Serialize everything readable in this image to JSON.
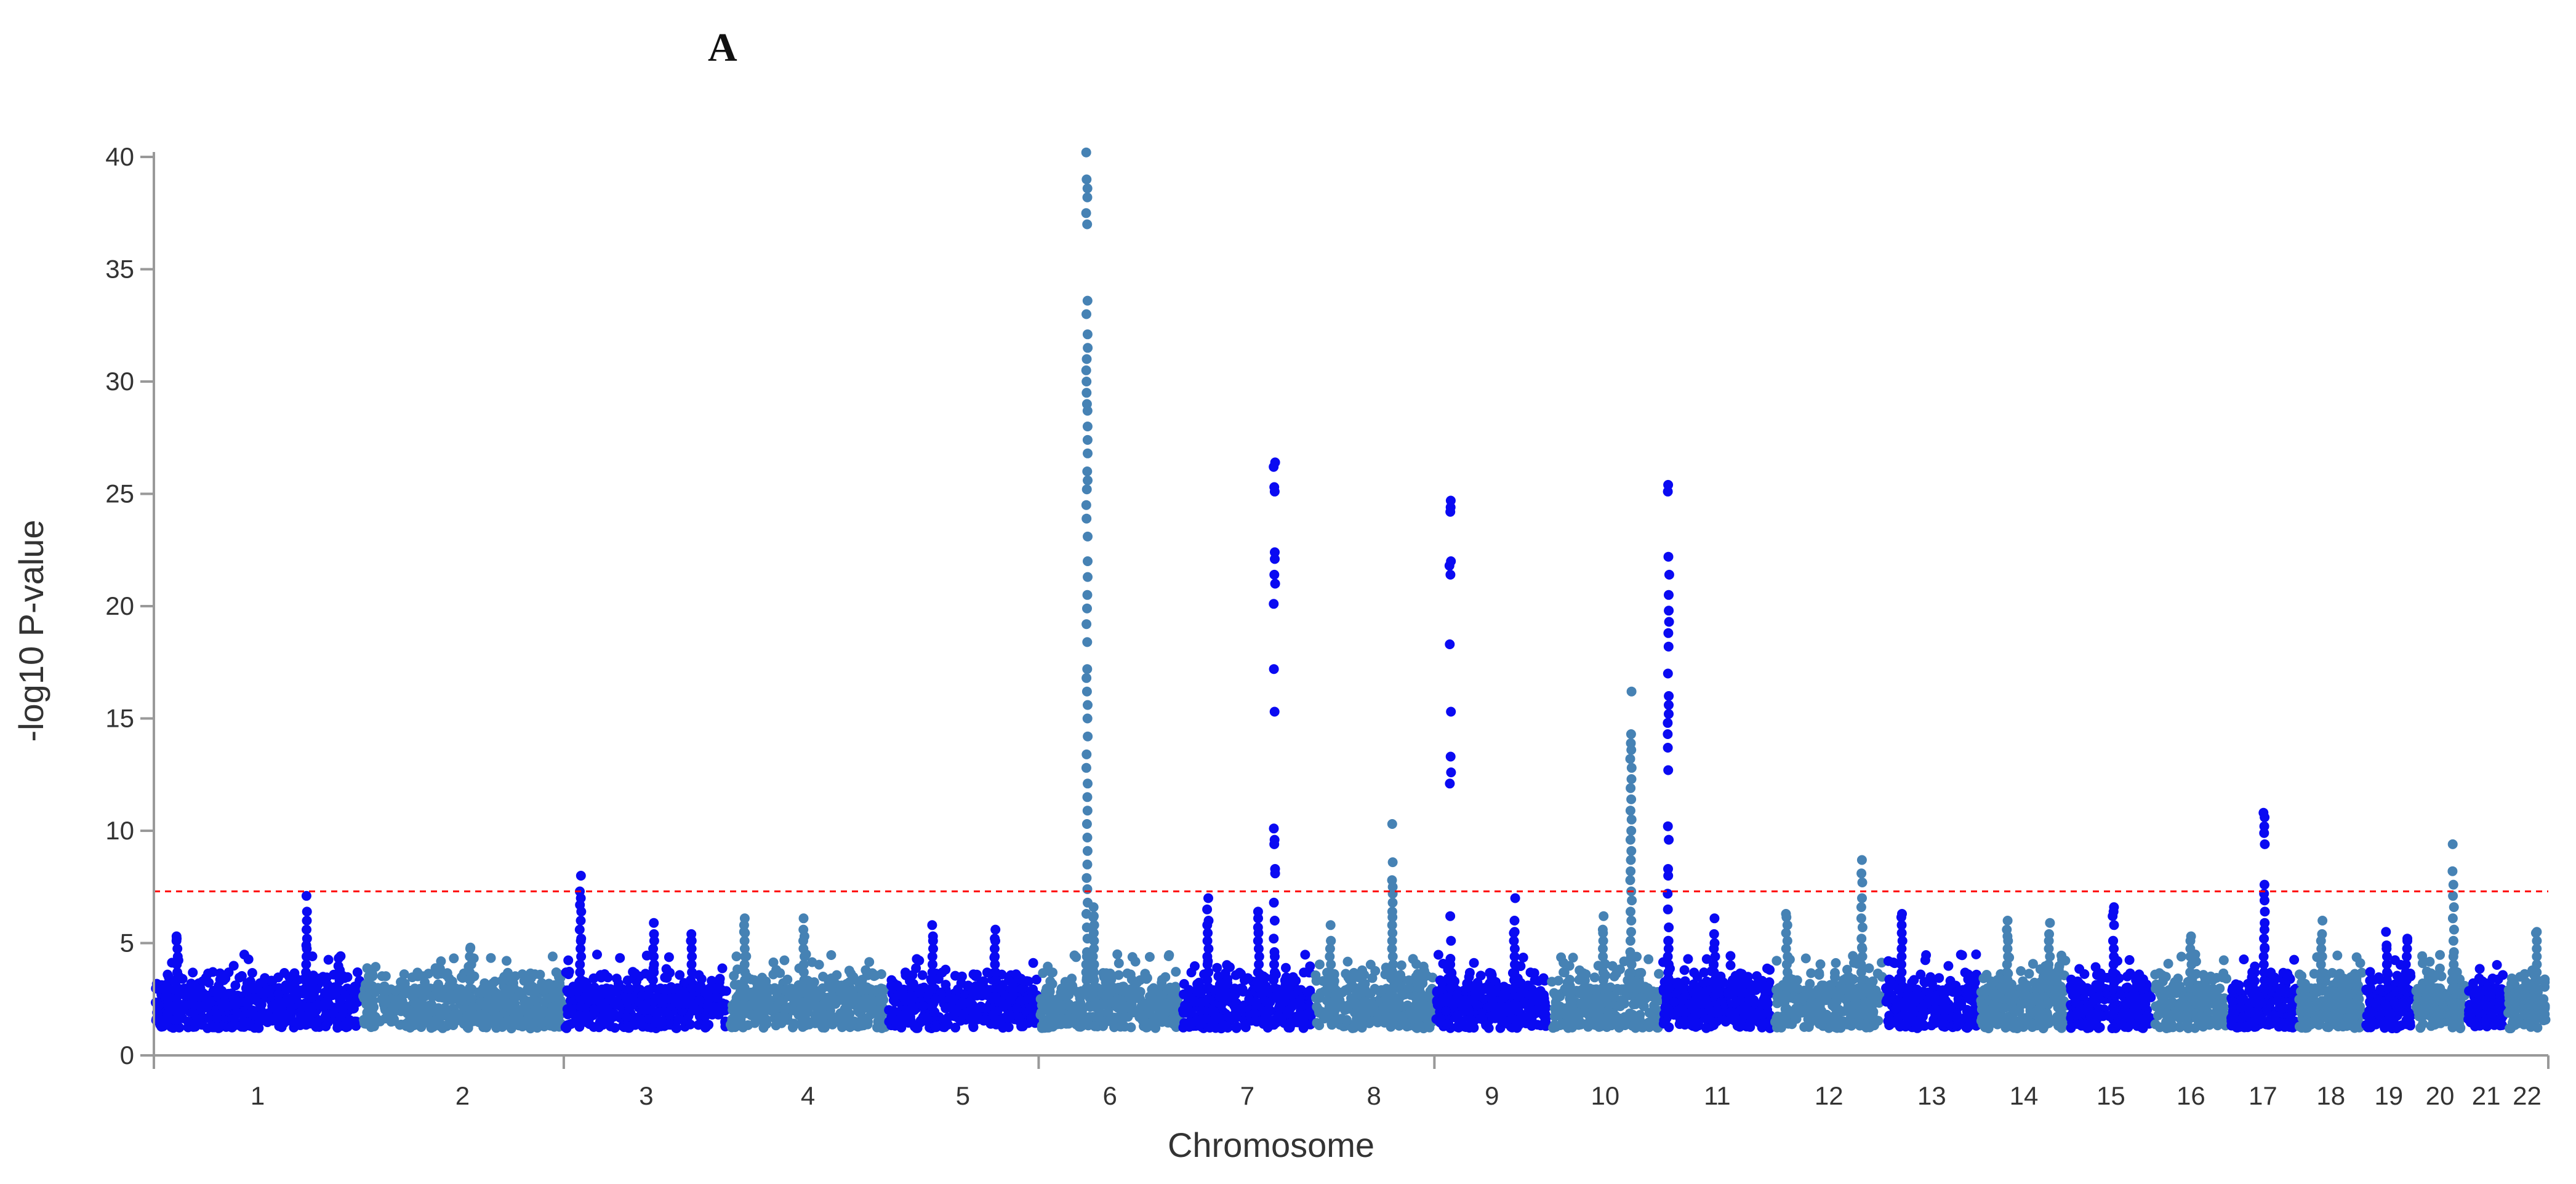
{
  "panel_label": "A",
  "colors": {
    "dark_blue": "#0a0af2",
    "steel_blue": "#4682b4",
    "threshold": "#ff0000",
    "axis": "#999999",
    "text": "#333333"
  },
  "chart_data": {
    "type": "scatter",
    "subtype": "manhattan",
    "title": "",
    "xlabel": "Chromosome",
    "ylabel": "-log10 P-value",
    "ylim": [
      0,
      40
    ],
    "yticks": [
      0,
      5,
      10,
      15,
      20,
      25,
      30,
      35,
      40
    ],
    "grid": false,
    "legend": "none",
    "significance_threshold": 7.3,
    "threshold_style": "dashed red",
    "chromosomes": [
      {
        "label": "1",
        "start": 0.0,
        "end": 249.0
      },
      {
        "label": "2",
        "start": 249.0,
        "end": 492.0
      },
      {
        "label": "3",
        "start": 492.0,
        "end": 690.0
      },
      {
        "label": "4",
        "start": 690.0,
        "end": 880.0
      },
      {
        "label": "5",
        "start": 880.0,
        "end": 1062.0
      },
      {
        "label": "6",
        "start": 1062.0,
        "end": 1233.0
      },
      {
        "label": "7",
        "start": 1233.0,
        "end": 1392.0
      },
      {
        "label": "8",
        "start": 1392.0,
        "end": 1537.0
      },
      {
        "label": "9",
        "start": 1537.0,
        "end": 1675.0
      },
      {
        "label": "10",
        "start": 1675.0,
        "end": 1809.0
      },
      {
        "label": "11",
        "start": 1809.0,
        "end": 1944.0
      },
      {
        "label": "12",
        "start": 1944.0,
        "end": 2077.0
      },
      {
        "label": "13",
        "start": 2077.0,
        "end": 2191.0
      },
      {
        "label": "14",
        "start": 2191.0,
        "end": 2298.0
      },
      {
        "label": "15",
        "start": 2298.0,
        "end": 2400.0
      },
      {
        "label": "16",
        "start": 2400.0,
        "end": 2490.0
      },
      {
        "label": "17",
        "start": 2490.0,
        "end": 2573.0
      },
      {
        "label": "18",
        "start": 2573.0,
        "end": 2653.0
      },
      {
        "label": "19",
        "start": 2653.0,
        "end": 2712.0
      },
      {
        "label": "20",
        "start": 2712.0,
        "end": 2776.0
      },
      {
        "label": "21",
        "start": 2776.0,
        "end": 2823.0
      },
      {
        "label": "22",
        "start": 2823.0,
        "end": 2874.0
      }
    ],
    "x_boundary_ticks": [
      0,
      492.0,
      1062.0,
      1537.0,
      2874.0
    ],
    "peaks": [
      {
        "chr": "6",
        "pos": 1120.0,
        "values": [
          40.2,
          39.0,
          38.6,
          38.2,
          37.5,
          37.0,
          33.6,
          33.0,
          32.1,
          31.5,
          31.0,
          30.5,
          30.0,
          29.5,
          29.0,
          28.7,
          28.0,
          27.4,
          26.8,
          26.0,
          25.6,
          25.2,
          24.5,
          23.9,
          23.1,
          22.0,
          21.3,
          20.5,
          19.9,
          19.2,
          18.4,
          17.2,
          16.8,
          16.2,
          15.6,
          15.0,
          14.2,
          13.4,
          12.8,
          12.1,
          11.5,
          10.9,
          10.3,
          9.7,
          9.1,
          8.5,
          7.9,
          7.4,
          6.8,
          6.3,
          5.7,
          5.2,
          4.6
        ]
      },
      {
        "chr": "6",
        "pos": 1128.0,
        "values": [
          6.6,
          6.2
        ]
      },
      {
        "chr": "7",
        "pos": 1345.0,
        "values": [
          26.4,
          26.2,
          25.3,
          25.1,
          22.4,
          22.1,
          21.4,
          21.0,
          20.1,
          17.2,
          15.3,
          10.1,
          9.6,
          9.4,
          8.3,
          8.1,
          6.8,
          6.0,
          5.2,
          4.6
        ]
      },
      {
        "chr": "8",
        "pos": 1487.0,
        "values": [
          10.3,
          8.6,
          7.8,
          7.5,
          7.2,
          6.8,
          6.4
        ]
      },
      {
        "chr": "9",
        "pos": 1556.0,
        "values": [
          24.7,
          24.4,
          24.2,
          22.0,
          21.8,
          21.4,
          18.3,
          15.3,
          13.3,
          12.6,
          12.1,
          6.2,
          5.1,
          4.3
        ]
      },
      {
        "chr": "10",
        "pos": 1773.0,
        "values": [
          16.2,
          14.3,
          13.9,
          13.6,
          13.2,
          12.8,
          12.3,
          11.9,
          11.4,
          10.9,
          10.5,
          10.0,
          9.6,
          9.1,
          8.7,
          8.2,
          7.8,
          7.3,
          6.9,
          6.4,
          6.0,
          5.5,
          5.1,
          4.6
        ]
      },
      {
        "chr": "11",
        "pos": 1818.0,
        "values": [
          25.4,
          25.1,
          22.2,
          21.4,
          20.5,
          19.8,
          19.3,
          18.8,
          18.2,
          17.0,
          16.0,
          15.6,
          15.2,
          14.8,
          14.3,
          13.7,
          12.7,
          10.2,
          9.6,
          8.3,
          8.0,
          7.2,
          6.5,
          5.7,
          5.1
        ]
      },
      {
        "chr": "12",
        "pos": 2050.0,
        "values": [
          8.7,
          8.1,
          7.7,
          7.0,
          6.6,
          6.1,
          5.7,
          5.2,
          4.8
        ]
      },
      {
        "chr": "17",
        "pos": 2533.0,
        "values": [
          10.8,
          10.6,
          10.2,
          9.9,
          9.4,
          7.6,
          7.2,
          6.9,
          6.4,
          5.9,
          5.6,
          5.2,
          4.8
        ]
      },
      {
        "chr": "20",
        "pos": 2760.0,
        "values": [
          9.4,
          8.2,
          7.6,
          7.1,
          6.6,
          6.1,
          5.6,
          5.1,
          4.6
        ]
      },
      {
        "chr": "3",
        "pos": 512.0,
        "values": [
          8.0,
          7.3,
          7.0,
          6.7,
          6.4,
          6.0,
          5.6,
          5.2
        ]
      },
      {
        "chr": "1",
        "pos": 183.0,
        "values": [
          7.1,
          6.4,
          6.0,
          5.6,
          5.2,
          4.9
        ]
      },
      {
        "chr": "7",
        "pos": 1265.0,
        "values": [
          7.0,
          6.5,
          6.0
        ]
      },
      {
        "chr": "7",
        "pos": 1326.0,
        "values": [
          6.4,
          6.1,
          5.7
        ]
      },
      {
        "chr": "9",
        "pos": 1633.0,
        "values": [
          7.0,
          6.0,
          5.5
        ]
      },
      {
        "chr": "15",
        "pos": 2352.0,
        "values": [
          6.6,
          6.4,
          6.2,
          5.8,
          5.1
        ]
      },
      {
        "chr": "4",
        "pos": 709.0,
        "values": [
          6.1,
          5.8,
          5.5
        ]
      },
      {
        "chr": "4",
        "pos": 780.0,
        "values": [
          6.1,
          5.6,
          5.3
        ]
      },
      {
        "chr": "13",
        "pos": 2098.0,
        "values": [
          6.3
        ]
      },
      {
        "chr": "11",
        "pos": 1873.0,
        "values": [
          6.1,
          5.4,
          5.0
        ]
      },
      {
        "chr": "12",
        "pos": 1960.0,
        "values": [
          6.3
        ]
      },
      {
        "chr": "14",
        "pos": 2225.0,
        "values": [
          6.0,
          5.6,
          5.3
        ]
      },
      {
        "chr": "14",
        "pos": 2275.0,
        "values": [
          5.9,
          5.4
        ]
      },
      {
        "chr": "10",
        "pos": 1740.0,
        "values": [
          6.2,
          5.6
        ]
      },
      {
        "chr": "5",
        "pos": 935.0,
        "values": [
          5.8,
          5.3
        ]
      },
      {
        "chr": "5",
        "pos": 1010.0,
        "values": [
          5.6,
          5.2
        ]
      },
      {
        "chr": "3",
        "pos": 600.0,
        "values": [
          5.9,
          5.4
        ]
      },
      {
        "chr": "3",
        "pos": 645.0,
        "values": [
          5.4,
          5.1
        ]
      },
      {
        "chr": "8",
        "pos": 1412.0,
        "values": [
          5.8,
          5.1
        ]
      },
      {
        "chr": "16",
        "pos": 2445.0,
        "values": [
          5.3
        ]
      },
      {
        "chr": "18",
        "pos": 2602.0,
        "values": [
          6.0,
          5.4
        ]
      },
      {
        "chr": "19",
        "pos": 2680.0,
        "values": [
          5.5,
          4.9
        ]
      },
      {
        "chr": "19",
        "pos": 2704.0,
        "values": [
          5.2
        ]
      },
      {
        "chr": "1",
        "pos": 28.0,
        "values": [
          5.3,
          5.2
        ]
      },
      {
        "chr": "2",
        "pos": 380.0,
        "values": [
          4.8
        ]
      },
      {
        "chr": "22",
        "pos": 2860.0,
        "values": [
          5.5
        ]
      }
    ]
  }
}
